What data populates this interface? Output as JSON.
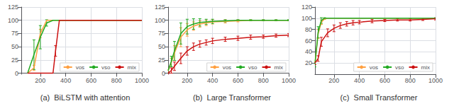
{
  "chart_data": [
    {
      "type": "line",
      "title": "(a)  BiLSTM with attention",
      "xlim": [
        50,
        1000
      ],
      "ylim": [
        -2,
        125
      ],
      "xticks": [
        200,
        400,
        600,
        800,
        1000
      ],
      "yticks": [
        0,
        25,
        50,
        75,
        100,
        125
      ],
      "grid": true,
      "legend": "lower right",
      "series": [
        {
          "name": "vos",
          "color": "#FFA040",
          "x": [
            100,
            150,
            200,
            250,
            300,
            350,
            500,
            800,
            1000
          ],
          "values": [
            0,
            10,
            75,
            100,
            100,
            100,
            100,
            100,
            100
          ],
          "yerr": [
            0,
            5,
            8,
            0,
            0,
            0,
            0,
            0,
            0
          ]
        },
        {
          "name": "vso",
          "color": "#22AA22",
          "x": [
            100,
            150,
            200,
            250,
            300,
            350,
            500,
            800,
            1000
          ],
          "values": [
            0,
            35,
            68,
            95,
            100,
            100,
            100,
            100,
            100
          ],
          "yerr": [
            0,
            28,
            22,
            6,
            0,
            0,
            0,
            0,
            0
          ]
        },
        {
          "name": "mix",
          "color": "#CC1111",
          "x": [
            100,
            200,
            250,
            300,
            320,
            350,
            400,
            500,
            800,
            1000
          ],
          "values": [
            0,
            0,
            0,
            0,
            42,
            100,
            100,
            100,
            100,
            100
          ],
          "yerr": [
            0,
            0,
            0,
            0,
            10,
            0,
            0,
            0,
            0,
            0
          ]
        }
      ]
    },
    {
      "type": "line",
      "title": "(b)  Large Transformer",
      "xlim": [
        50,
        1000
      ],
      "ylim": [
        -2,
        125
      ],
      "xticks": [
        200,
        400,
        600,
        800,
        1000
      ],
      "yticks": [
        0,
        25,
        50,
        75,
        100,
        125
      ],
      "grid": true,
      "legend": "lower right",
      "series": [
        {
          "name": "vos",
          "color": "#FFA040",
          "x": [
            50,
            75,
            100,
            150,
            200,
            250,
            300,
            350,
            400,
            500,
            600,
            700,
            800,
            900,
            1000
          ],
          "values": [
            5,
            20,
            38,
            68,
            82,
            89,
            93,
            95,
            97,
            98,
            99,
            100,
            100,
            100,
            100
          ],
          "yerr": [
            3,
            8,
            14,
            18,
            12,
            8,
            6,
            5,
            4,
            3,
            2,
            1,
            1,
            1,
            1
          ]
        },
        {
          "name": "vso",
          "color": "#22AA22",
          "x": [
            50,
            75,
            100,
            150,
            200,
            250,
            300,
            350,
            400,
            500,
            600,
            700,
            800,
            900,
            1000
          ],
          "values": [
            5,
            22,
            42,
            75,
            88,
            93,
            96,
            97,
            98,
            99,
            100,
            100,
            100,
            100,
            100
          ],
          "yerr": [
            3,
            10,
            18,
            20,
            14,
            10,
            7,
            5,
            4,
            2,
            1,
            1,
            1,
            1,
            1
          ]
        },
        {
          "name": "mix",
          "color": "#CC1111",
          "x": [
            50,
            75,
            100,
            150,
            200,
            250,
            300,
            350,
            400,
            500,
            600,
            700,
            800,
            900,
            1000
          ],
          "values": [
            0,
            5,
            13,
            28,
            42,
            50,
            55,
            58,
            61,
            64,
            66,
            68,
            69,
            71,
            72
          ],
          "yerr": [
            2,
            5,
            8,
            10,
            8,
            7,
            6,
            5,
            5,
            4,
            4,
            4,
            3,
            3,
            3
          ]
        }
      ]
    },
    {
      "type": "line",
      "title": "(c)  Small Transformer",
      "xlim": [
        50,
        1000
      ],
      "ylim": [
        0,
        120
      ],
      "xticks": [
        200,
        400,
        600,
        800,
        1000
      ],
      "yticks": [
        20,
        40,
        60,
        80,
        100,
        120
      ],
      "grid": true,
      "legend": "lower right",
      "series": [
        {
          "name": "vos",
          "color": "#FFA040",
          "x": [
            50,
            75,
            100,
            125,
            150,
            200,
            300,
            500,
            800,
            1000
          ],
          "values": [
            20,
            72,
            93,
            99,
            100,
            100,
            100,
            100,
            100,
            100
          ],
          "yerr": [
            3,
            8,
            4,
            1,
            0,
            0,
            0,
            0,
            0,
            0
          ]
        },
        {
          "name": "vso",
          "color": "#22AA22",
          "x": [
            50,
            75,
            100,
            125,
            150,
            200,
            300,
            500,
            800,
            1000
          ],
          "values": [
            18,
            75,
            96,
            100,
            100,
            100,
            100,
            100,
            100,
            100
          ],
          "yerr": [
            5,
            10,
            5,
            1,
            0,
            0,
            0,
            0,
            0,
            0
          ]
        },
        {
          "name": "mix",
          "color": "#CC1111",
          "x": [
            50,
            75,
            100,
            150,
            200,
            250,
            300,
            350,
            400,
            500,
            600,
            700,
            800,
            900,
            1000
          ],
          "values": [
            20,
            28,
            58,
            74,
            82,
            87,
            90,
            92,
            93,
            95,
            96,
            97,
            97,
            98,
            99
          ],
          "yerr": [
            3,
            5,
            8,
            7,
            6,
            5,
            4,
            4,
            3,
            3,
            2,
            2,
            2,
            2,
            2
          ]
        }
      ]
    }
  ]
}
